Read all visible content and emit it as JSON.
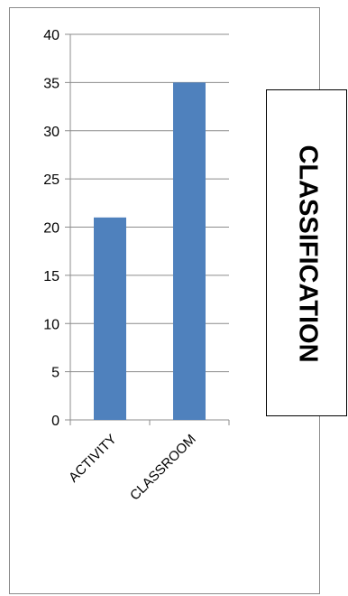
{
  "chart_data": {
    "type": "bar",
    "categories": [
      "ACTIVITY",
      "CLASSROOM"
    ],
    "values": [
      21,
      35
    ],
    "title": "CLASSIFICATION",
    "xlabel": "",
    "ylabel": "",
    "ylim": [
      0,
      40
    ],
    "yticks": [
      "0",
      "5",
      "10",
      "15",
      "20",
      "25",
      "30",
      "35",
      "40"
    ],
    "grid": true,
    "legend": "none",
    "bar_color": "#4f81bd"
  }
}
